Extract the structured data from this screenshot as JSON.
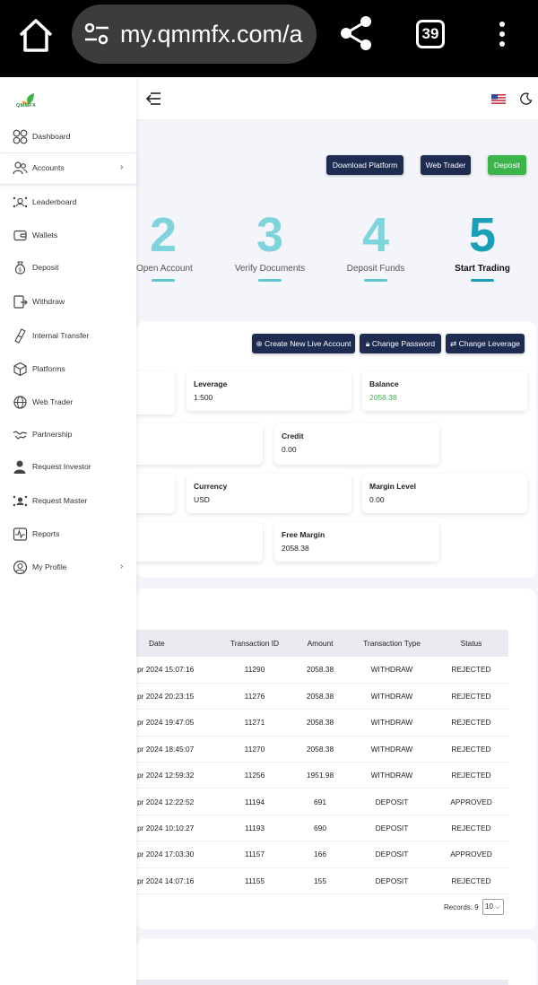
{
  "browser": {
    "url": "my.qmmfx.com/a",
    "tab_count": "39"
  },
  "sidebar": {
    "logo_text": "QMMFX",
    "items": [
      {
        "label": "Dashboard"
      },
      {
        "label": "Accounts"
      },
      {
        "label": "Leaderboard"
      },
      {
        "label": "Wallets"
      },
      {
        "label": "Deposit"
      },
      {
        "label": "Withdraw"
      },
      {
        "label": "Internal Transfer"
      },
      {
        "label": "Platforms"
      },
      {
        "label": "Web Trader"
      },
      {
        "label": "Partnership"
      },
      {
        "label": "Request Investor"
      },
      {
        "label": "Request Master"
      },
      {
        "label": "Reports"
      },
      {
        "label": "My Profile"
      }
    ]
  },
  "header_buttons": {
    "download_platform": "Download Platform",
    "web_trader": "Web Trader",
    "deposit": "Deposit"
  },
  "steps": [
    {
      "number": "2",
      "label": "Open Account"
    },
    {
      "number": "3",
      "label": "Verify Documents"
    },
    {
      "number": "4",
      "label": "Deposit Funds"
    },
    {
      "number": "5",
      "label": "Start Trading"
    }
  ],
  "account_actions": {
    "create_live": "Create New Live Account",
    "change_password": "Change Password",
    "change_leverage": "Change Leverage"
  },
  "stats": {
    "leverage": {
      "title": "Leverage",
      "value": "1:500"
    },
    "balance": {
      "title": "Balance",
      "value": "2058.38"
    },
    "credit": {
      "title": "Credit",
      "value": "0.00"
    },
    "currency": {
      "title": "Currency",
      "value": "USD"
    },
    "margin_level": {
      "title": "Margin Level",
      "value": "0.00"
    },
    "free_margin": {
      "title": "Free Margin",
      "value": "2058.38"
    }
  },
  "transactions": {
    "columns": [
      "Date",
      "Transaction ID",
      "Amount",
      "Transaction Type",
      "Status"
    ],
    "rows": [
      {
        "date": "pr 2024 15:07:16",
        "id": "11290",
        "amount": "2058.38",
        "type": "WITHDRAW",
        "status": "REJECTED"
      },
      {
        "date": "pr 2024 20:23:15",
        "id": "11276",
        "amount": "2058.38",
        "type": "WITHDRAW",
        "status": "REJECTED"
      },
      {
        "date": "pr 2024 19:47:05",
        "id": "11271",
        "amount": "2058.38",
        "type": "WITHDRAW",
        "status": "REJECTED"
      },
      {
        "date": "pr 2024 18:45:07",
        "id": "11270",
        "amount": "2058.38",
        "type": "WITHDRAW",
        "status": "REJECTED"
      },
      {
        "date": "pr 2024 12:59:32",
        "id": "11256",
        "amount": "1951.98",
        "type": "WITHDRAW",
        "status": "REJECTED"
      },
      {
        "date": "pr 2024 12:22:52",
        "id": "11194",
        "amount": "691",
        "type": "DEPOSIT",
        "status": "APPROVED"
      },
      {
        "date": "pr 2024 10:10:27",
        "id": "11193",
        "amount": "690",
        "type": "DEPOSIT",
        "status": "REJECTED"
      },
      {
        "date": "pr 2024 17:03:30",
        "id": "11157",
        "amount": "166",
        "type": "DEPOSIT",
        "status": "APPROVED"
      },
      {
        "date": "pr 2024 14:07:16",
        "id": "11155",
        "amount": "155",
        "type": "DEPOSIT",
        "status": "REJECTED"
      }
    ],
    "records_label": "Records: 9",
    "page_size": "10"
  },
  "colors": {
    "navy": "#1f2c52",
    "green": "#3bb54a",
    "teal": "#1b9fb8",
    "rejected": "#d9534f"
  }
}
